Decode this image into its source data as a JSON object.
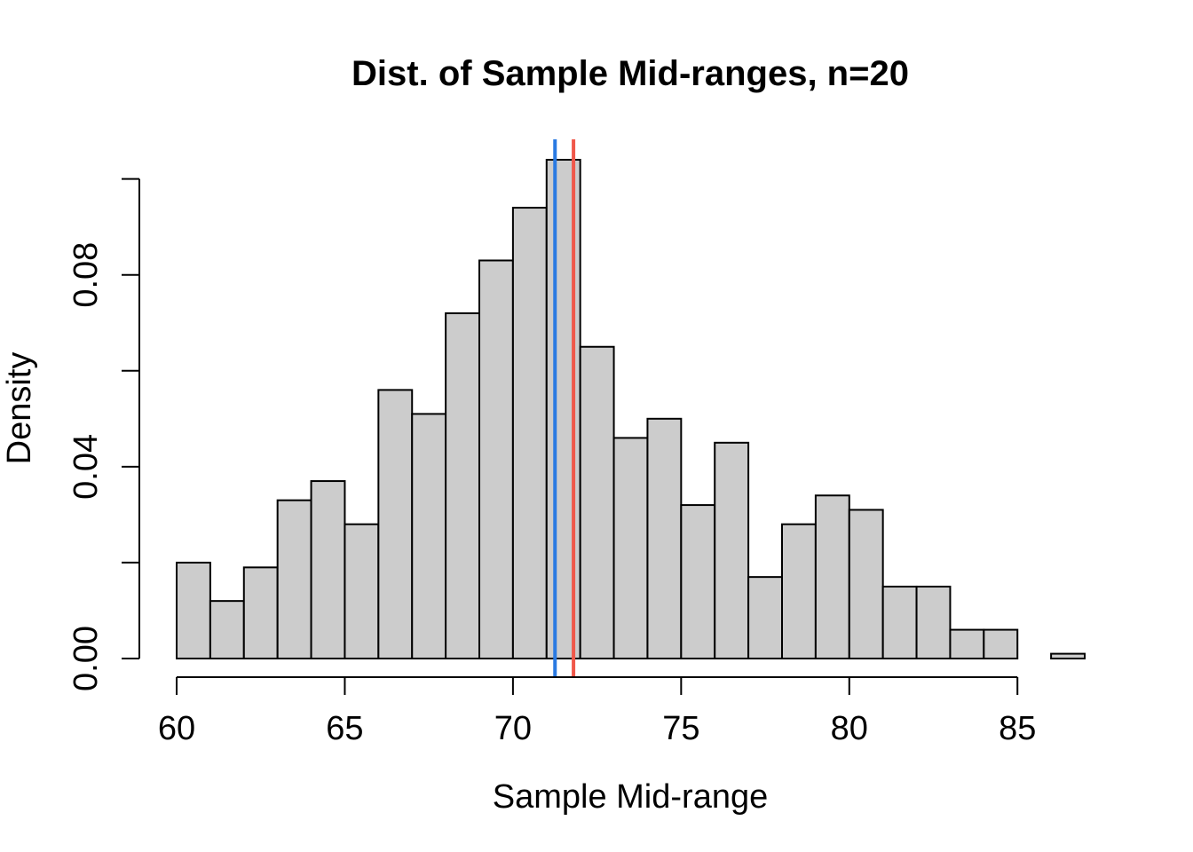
{
  "chart_data": {
    "type": "bar",
    "title": "Dist. of Sample Mid-ranges, n=20",
    "xlabel": "Sample Mid-range",
    "ylabel": "Density",
    "xlim": [
      60,
      87
    ],
    "ylim": [
      0,
      0.104
    ],
    "x_ticks": [
      60,
      65,
      70,
      75,
      80,
      85
    ],
    "x_tick_labels": [
      "60",
      "65",
      "70",
      "75",
      "80",
      "85"
    ],
    "y_ticks": [
      0,
      0.02,
      0.04,
      0.06,
      0.08,
      0.1
    ],
    "y_tick_labels": [
      "0.00",
      "",
      "0.04",
      "",
      "0.08",
      ""
    ],
    "bin_width": 1,
    "bins": [
      {
        "x0": 60,
        "x1": 61,
        "density": 0.02
      },
      {
        "x0": 61,
        "x1": 62,
        "density": 0.012
      },
      {
        "x0": 62,
        "x1": 63,
        "density": 0.019
      },
      {
        "x0": 63,
        "x1": 64,
        "density": 0.033
      },
      {
        "x0": 64,
        "x1": 65,
        "density": 0.037
      },
      {
        "x0": 65,
        "x1": 66,
        "density": 0.028
      },
      {
        "x0": 66,
        "x1": 67,
        "density": 0.056
      },
      {
        "x0": 67,
        "x1": 68,
        "density": 0.051
      },
      {
        "x0": 68,
        "x1": 69,
        "density": 0.072
      },
      {
        "x0": 69,
        "x1": 70,
        "density": 0.083
      },
      {
        "x0": 70,
        "x1": 71,
        "density": 0.094
      },
      {
        "x0": 71,
        "x1": 72,
        "density": 0.104
      },
      {
        "x0": 72,
        "x1": 73,
        "density": 0.065
      },
      {
        "x0": 73,
        "x1": 74,
        "density": 0.046
      },
      {
        "x0": 74,
        "x1": 75,
        "density": 0.05
      },
      {
        "x0": 75,
        "x1": 76,
        "density": 0.032
      },
      {
        "x0": 76,
        "x1": 77,
        "density": 0.045
      },
      {
        "x0": 77,
        "x1": 78,
        "density": 0.017
      },
      {
        "x0": 78,
        "x1": 79,
        "density": 0.028
      },
      {
        "x0": 79,
        "x1": 80,
        "density": 0.034
      },
      {
        "x0": 80,
        "x1": 81,
        "density": 0.031
      },
      {
        "x0": 81,
        "x1": 82,
        "density": 0.015
      },
      {
        "x0": 82,
        "x1": 83,
        "density": 0.015
      },
      {
        "x0": 83,
        "x1": 84,
        "density": 0.006
      },
      {
        "x0": 84,
        "x1": 85,
        "density": 0.006
      },
      {
        "x0": 85,
        "x1": 86,
        "density": 0.0
      },
      {
        "x0": 86,
        "x1": 87,
        "density": 0.001
      }
    ],
    "vlines": [
      {
        "x": 71.25,
        "color": "#2a7ae2"
      },
      {
        "x": 71.8,
        "color": "#f0584a"
      }
    ],
    "bar_fill": "#cccccc",
    "bar_stroke": "#000000",
    "grid": false,
    "legend": "none"
  }
}
